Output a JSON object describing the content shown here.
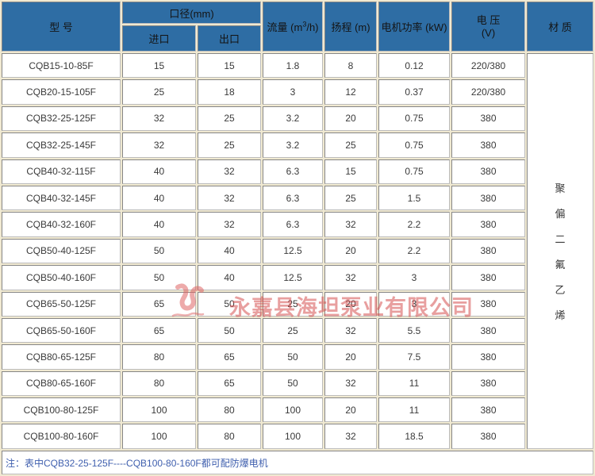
{
  "table": {
    "headers": {
      "model": "型 号",
      "diameter_group": "口径(mm)",
      "inlet": "进口",
      "outlet": "出口",
      "flow_prefix": "流量 (m",
      "flow_sup": "3",
      "flow_suffix": "/h)",
      "head": "扬程 (m)",
      "power": "电机功率 (kW)",
      "voltage_line1": "电 压",
      "voltage_line2": "(V)",
      "material": "材 质"
    },
    "material_value": "聚偏二氟乙烯",
    "rows": [
      [
        "CQB15-10-85F",
        "15",
        "15",
        "1.8",
        "8",
        "0.12",
        "220/380"
      ],
      [
        "CQB20-15-105F",
        "25",
        "18",
        "3",
        "12",
        "0.37",
        "220/380"
      ],
      [
        "CQB32-25-125F",
        "32",
        "25",
        "3.2",
        "20",
        "0.75",
        "380"
      ],
      [
        "CQB32-25-145F",
        "32",
        "25",
        "3.2",
        "25",
        "0.75",
        "380"
      ],
      [
        "CQB40-32-115F",
        "40",
        "32",
        "6.3",
        "15",
        "0.75",
        "380"
      ],
      [
        "CQB40-32-145F",
        "40",
        "32",
        "6.3",
        "25",
        "1.5",
        "380"
      ],
      [
        "CQB40-32-160F",
        "40",
        "32",
        "6.3",
        "32",
        "2.2",
        "380"
      ],
      [
        "CQB50-40-125F",
        "50",
        "40",
        "12.5",
        "20",
        "2.2",
        "380"
      ],
      [
        "CQB50-40-160F",
        "50",
        "40",
        "12.5",
        "32",
        "3",
        "380"
      ],
      [
        "CQB65-50-125F",
        "65",
        "50",
        "25",
        "20",
        "3",
        "380"
      ],
      [
        "CQB65-50-160F",
        "65",
        "50",
        "25",
        "32",
        "5.5",
        "380"
      ],
      [
        "CQB80-65-125F",
        "80",
        "65",
        "50",
        "20",
        "7.5",
        "380"
      ],
      [
        "CQB80-65-160F",
        "80",
        "65",
        "50",
        "32",
        "11",
        "380"
      ],
      [
        "CQB100-80-125F",
        "100",
        "80",
        "100",
        "20",
        "11",
        "380"
      ],
      [
        "CQB100-80-160F",
        "100",
        "80",
        "100",
        "32",
        "18.5",
        "380"
      ]
    ],
    "note": "注：表中CQB32-25-125F----CQB100-80-160F都可配防爆电机"
  },
  "watermark": {
    "company": "永嘉县海坦泵业有限公司"
  },
  "colors": {
    "header_bg": "#2e6da4",
    "spacing_bg": "#f0e9d1",
    "note_text": "#3f5fae",
    "watermark_red": "#d65050"
  }
}
